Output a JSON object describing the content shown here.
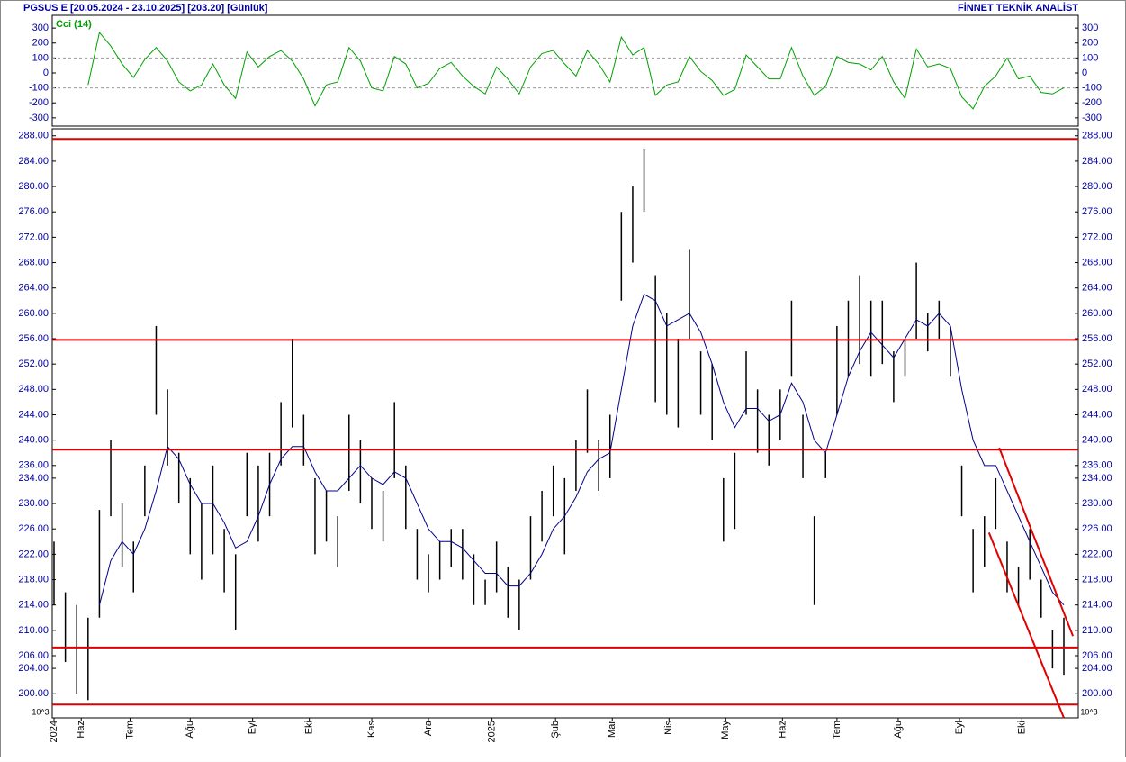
{
  "header": {
    "title": "PGSUS E  [20.05.2024 - 23.10.2025]  [203.20]  [Günlük]",
    "source": "FİNNET TEKNİK ANALİST"
  },
  "chart_data": [
    {
      "type": "line",
      "xlim": [
        0,
        89
      ],
      "ylim": [
        -355,
        385
      ],
      "yticks": [
        -300,
        -200,
        -100,
        0,
        100,
        200,
        300
      ],
      "reference_lines": [
        100,
        -100
      ],
      "series": [
        {
          "name": "Cci (14)",
          "color": "#00a000",
          "values": [
            null,
            null,
            null,
            -80,
            270,
            180,
            60,
            -30,
            90,
            170,
            80,
            -60,
            -120,
            -80,
            60,
            -80,
            -170,
            140,
            40,
            110,
            150,
            80,
            -40,
            -220,
            -80,
            -60,
            170,
            80,
            -100,
            -120,
            110,
            60,
            -100,
            -70,
            30,
            70,
            -20,
            -90,
            -140,
            40,
            -40,
            -140,
            40,
            130,
            150,
            60,
            -20,
            150,
            60,
            -60,
            240,
            120,
            170,
            -150,
            -80,
            -60,
            110,
            10,
            -50,
            -150,
            -110,
            120,
            40,
            -40,
            -40,
            170,
            -20,
            -150,
            -90,
            110,
            70,
            60,
            20,
            110,
            -60,
            -170,
            160,
            40,
            60,
            30,
            -160,
            -240,
            -90,
            -20,
            100,
            -40,
            -20,
            -130,
            -140,
            -100
          ]
        }
      ]
    },
    {
      "type": "hilo",
      "color": "#000000",
      "unit_label": "10^3",
      "xlim": [
        0,
        89
      ],
      "ylim": [
        196.2,
        289.1
      ],
      "yticks": [
        {
          "value": 200,
          "label": "200.00"
        },
        {
          "value": 204,
          "label": "204.00"
        },
        {
          "value": 206,
          "label": "206.00"
        },
        {
          "value": 210,
          "label": "210.00"
        },
        {
          "value": 214,
          "label": "214.00"
        },
        {
          "value": 218,
          "label": "218.00"
        },
        {
          "value": 222,
          "label": "222.00"
        },
        {
          "value": 226,
          "label": "226.00"
        },
        {
          "value": 230,
          "label": "230.00"
        },
        {
          "value": 234,
          "label": "234.00"
        },
        {
          "value": 236,
          "label": "236.00"
        },
        {
          "value": 240,
          "label": "240.00"
        },
        {
          "value": 244,
          "label": "244.00"
        },
        {
          "value": 248,
          "label": "248.00"
        },
        {
          "value": 252,
          "label": "252.00"
        },
        {
          "value": 256,
          "label": "256.00"
        },
        {
          "value": 260,
          "label": "260.00"
        },
        {
          "value": 264,
          "label": "264.00"
        },
        {
          "value": 268,
          "label": "268.00"
        },
        {
          "value": 272,
          "label": "272.00"
        },
        {
          "value": 276,
          "label": "276.00"
        },
        {
          "value": 280,
          "label": "280.00"
        },
        {
          "value": 284,
          "label": "284.00"
        },
        {
          "value": 288,
          "label": "288.00"
        }
      ],
      "xticks": [
        {
          "value": 0,
          "label": "2024"
        },
        {
          "value": 2.4,
          "label": "Haz"
        },
        {
          "value": 6.7,
          "label": "Tem"
        },
        {
          "value": 12,
          "label": "Ağu"
        },
        {
          "value": 17.5,
          "label": "Eyl"
        },
        {
          "value": 22.5,
          "label": "Eki"
        },
        {
          "value": 28,
          "label": "Kas"
        },
        {
          "value": 33,
          "label": "Ara"
        },
        {
          "value": 38.6,
          "label": "2025"
        },
        {
          "value": 44.2,
          "label": "Şub"
        },
        {
          "value": 49.2,
          "label": "Mar"
        },
        {
          "value": 54.2,
          "label": "Nis"
        },
        {
          "value": 59.2,
          "label": "May"
        },
        {
          "value": 64.2,
          "label": "Haz"
        },
        {
          "value": 69,
          "label": "Tem"
        },
        {
          "value": 74.4,
          "label": "Ağu"
        },
        {
          "value": 79.8,
          "label": "Eyl"
        },
        {
          "value": 85.3,
          "label": "Eki"
        }
      ],
      "high": [
        224,
        216,
        214,
        212,
        229,
        240,
        230,
        224,
        236,
        258,
        248,
        238,
        234,
        230,
        236,
        226,
        222,
        238,
        236,
        238,
        246,
        256,
        244,
        234,
        232,
        228,
        244,
        240,
        234,
        232,
        246,
        236,
        226,
        222,
        224,
        226,
        226,
        222,
        218,
        224,
        220,
        218,
        228,
        232,
        236,
        234,
        240,
        248,
        240,
        244,
        276,
        280,
        286,
        266,
        260,
        256,
        270,
        254,
        252,
        234,
        238,
        254,
        248,
        244,
        248,
        262,
        244,
        228,
        238,
        258,
        262,
        266,
        262,
        262,
        254,
        256,
        268,
        260,
        262,
        258,
        236,
        226,
        228,
        234,
        224,
        220,
        226,
        218,
        210,
        212
      ],
      "low": [
        214,
        205,
        200,
        199,
        212,
        228,
        220,
        216,
        228,
        244,
        236,
        230,
        222,
        218,
        222,
        216,
        210,
        228,
        224,
        228,
        236,
        242,
        236,
        222,
        224,
        220,
        232,
        230,
        226,
        224,
        234,
        226,
        218,
        216,
        218,
        220,
        218,
        214,
        214,
        216,
        212,
        210,
        218,
        224,
        228,
        222,
        232,
        238,
        232,
        234,
        262,
        268,
        276,
        246,
        244,
        242,
        256,
        244,
        240,
        224,
        226,
        244,
        238,
        236,
        240,
        250,
        234,
        214,
        234,
        244,
        250,
        252,
        250,
        252,
        246,
        250,
        256,
        254,
        256,
        250,
        228,
        216,
        220,
        226,
        216,
        214,
        218,
        212,
        204,
        203
      ],
      "average": {
        "color": "#000088",
        "values": [
          null,
          null,
          null,
          null,
          214,
          221,
          224,
          222,
          226,
          232,
          239,
          237,
          233,
          230,
          230,
          227,
          223,
          224,
          228,
          233,
          237,
          239,
          239,
          235,
          232,
          232,
          234,
          236,
          234,
          233,
          235,
          234,
          230,
          226,
          224,
          224,
          223,
          221,
          219,
          219,
          217,
          217,
          219,
          222,
          226,
          228,
          231,
          235,
          237,
          238,
          248,
          258,
          263,
          262,
          258,
          259,
          260,
          257,
          252,
          246,
          242,
          245,
          245,
          243,
          244,
          249,
          246,
          240,
          238,
          244,
          250,
          254,
          257,
          255,
          253,
          256,
          259,
          258,
          260,
          258,
          248,
          240,
          236,
          236,
          232,
          228,
          224,
          220,
          216,
          214
        ]
      },
      "hlines": {
        "color": "#e00000",
        "values": [
          287.5,
          255.8,
          238.5,
          207.3,
          198.3
        ]
      },
      "trendlines": [
        {
          "color": "#e00000",
          "x": [
            83.3,
            89.8
          ],
          "y": [
            238.8,
            209.1
          ]
        },
        {
          "color": "#e00000",
          "x": [
            82.4,
            89
          ],
          "y": [
            225.4,
            196.2
          ]
        }
      ]
    }
  ]
}
